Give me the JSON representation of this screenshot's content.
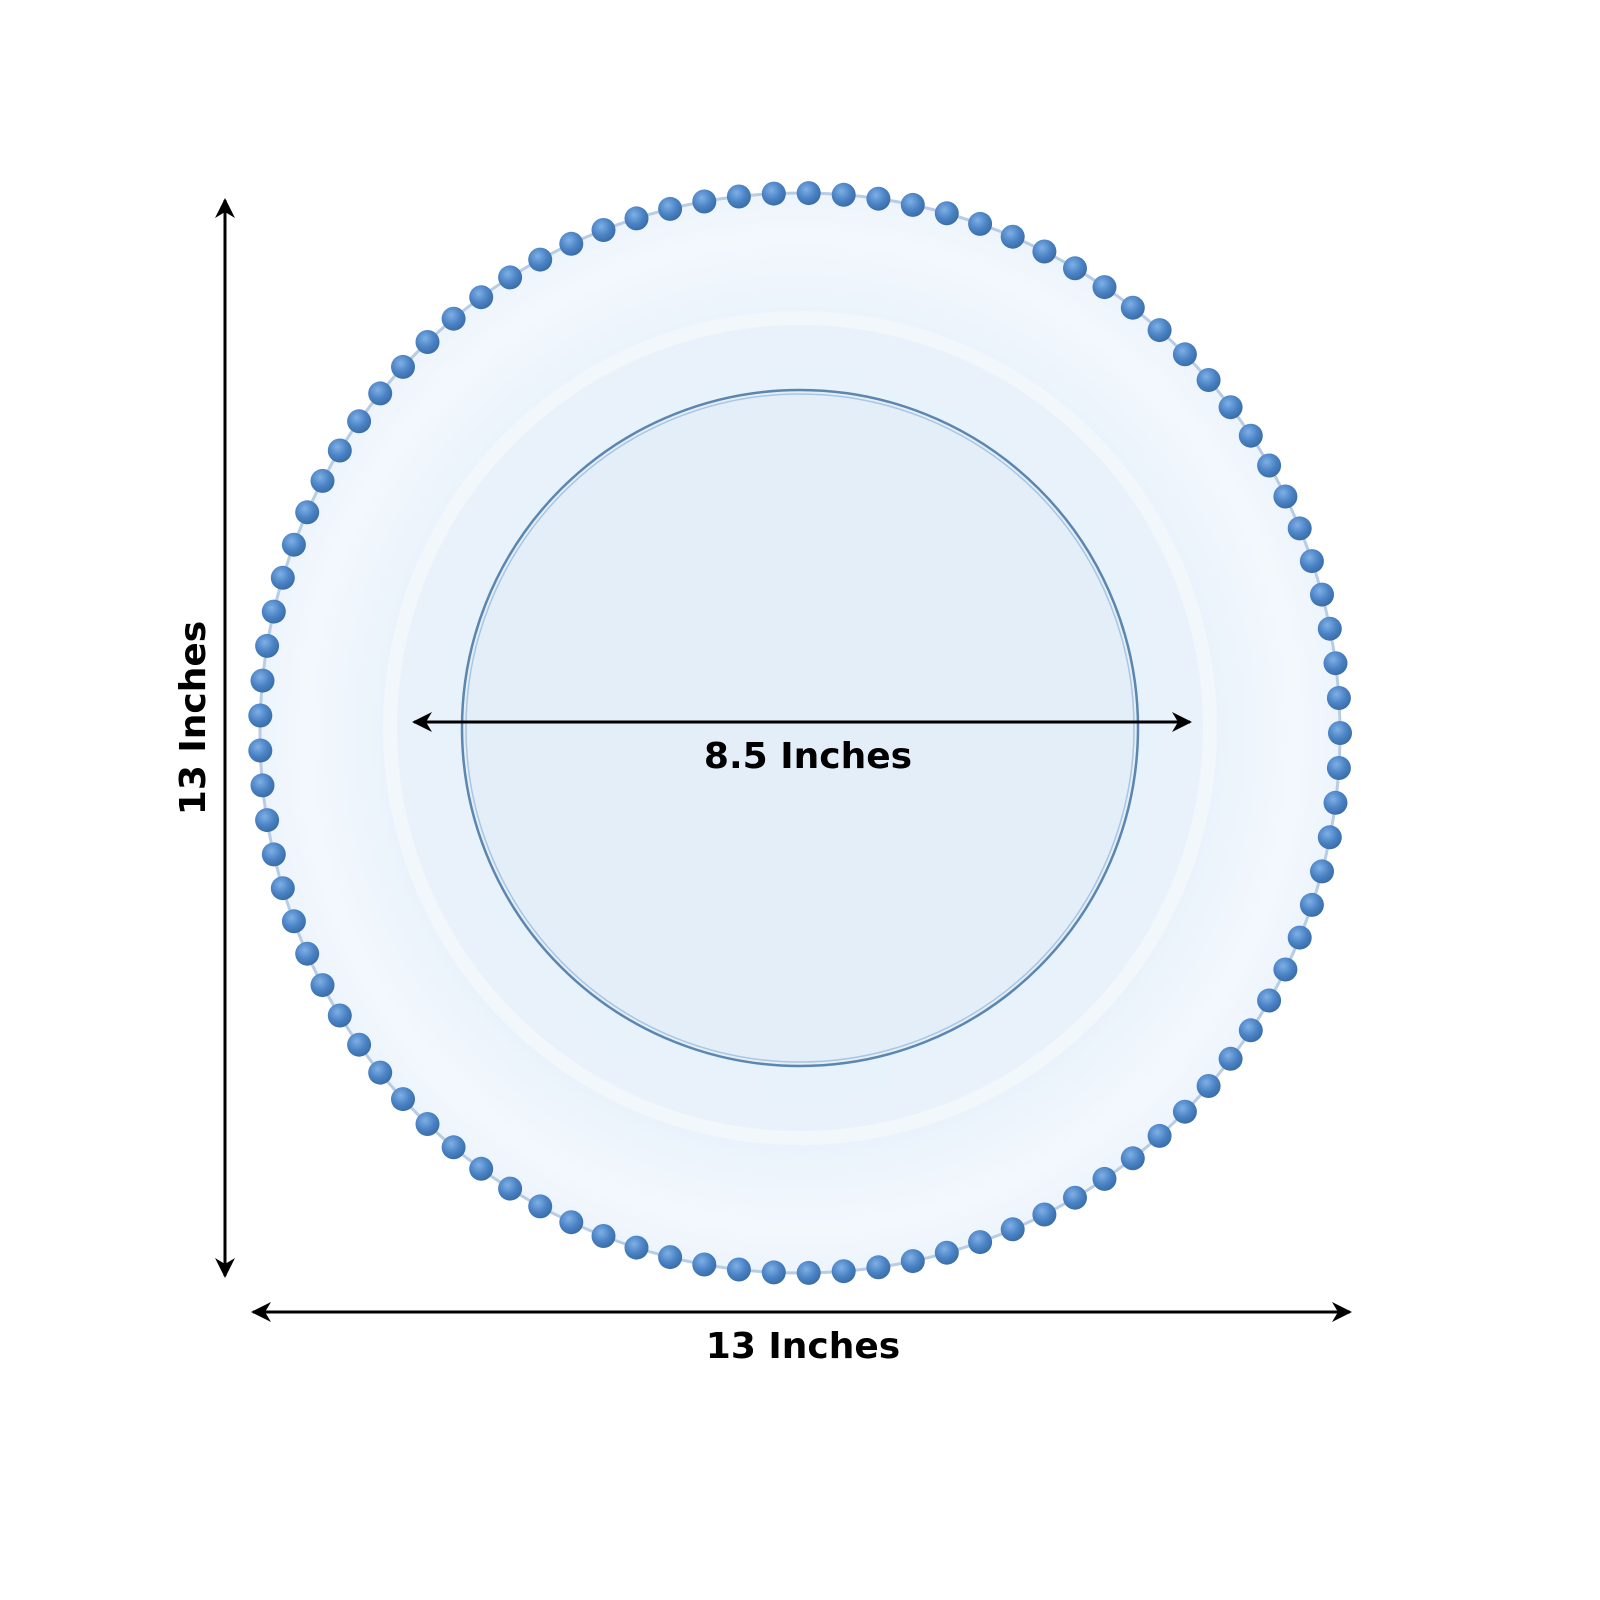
{
  "dimensions": {
    "height_label": "13 Inches",
    "width_label": "13 Inches",
    "inner_label": "8.5 Inches"
  },
  "colors": {
    "background": "#ffffff",
    "plate": "#e8f1fb",
    "beads": "#4a82c4",
    "inner_rim": "#5a86b0",
    "arrows": "#000000"
  },
  "icons": {
    "plate": "beaded-charger-plate-icon",
    "arrow": "double-headed-arrow-icon"
  }
}
